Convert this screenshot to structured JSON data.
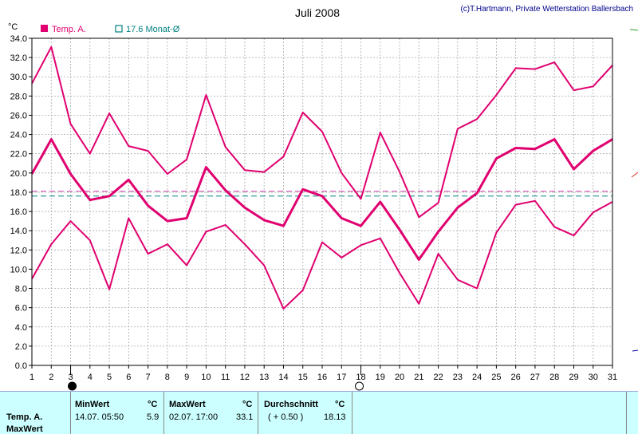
{
  "chart_data": {
    "type": "line",
    "title": "Juli 2008",
    "credit": "(c)T.Hartmann, Private Wetterstation Ballersbach",
    "ylabel": "°C",
    "ylim": [
      0,
      34
    ],
    "yticks": [
      "0.0",
      "2.0",
      "4.0",
      "6.0",
      "8.0",
      "10.0",
      "12.0",
      "14.0",
      "16.0",
      "18.0",
      "20.0",
      "22.0",
      "24.0",
      "26.0",
      "28.0",
      "30.0",
      "32.0",
      "34.0"
    ],
    "x": [
      1,
      2,
      3,
      4,
      5,
      6,
      7,
      8,
      9,
      10,
      11,
      12,
      13,
      14,
      15,
      16,
      17,
      18,
      19,
      20,
      21,
      22,
      23,
      24,
      25,
      26,
      27,
      28,
      29,
      30,
      31
    ],
    "grid": true,
    "legend": [
      {
        "label": "Temp. A.",
        "color": "#e0006f",
        "swatch": "filled"
      },
      {
        "label": "17.6 Monat-Ø",
        "color": "#008080",
        "swatch": "hollow"
      }
    ],
    "series": [
      {
        "name": "Max",
        "color": "#e0006f",
        "values": [
          29.3,
          33.1,
          25.1,
          22.0,
          26.2,
          22.8,
          22.3,
          19.9,
          21.4,
          28.1,
          22.7,
          20.3,
          20.1,
          21.7,
          26.3,
          24.3,
          20.0,
          17.3,
          24.2,
          20.1,
          15.4,
          16.9,
          24.6,
          25.6,
          28.1,
          30.9,
          30.8,
          31.5,
          28.6,
          29.0,
          31.2
        ]
      },
      {
        "name": "Durchschnitt",
        "color": "#e0006f",
        "bold": true,
        "values": [
          19.9,
          23.5,
          19.9,
          17.2,
          17.6,
          19.3,
          16.6,
          15.0,
          15.3,
          20.6,
          18.2,
          16.4,
          15.1,
          14.5,
          18.3,
          17.6,
          15.3,
          14.5,
          17.0,
          14.1,
          11.0,
          13.9,
          16.4,
          17.9,
          21.5,
          22.6,
          22.5,
          23.5,
          20.4,
          22.3,
          23.5
        ]
      },
      {
        "name": "Min",
        "color": "#e0006f",
        "values": [
          9.0,
          12.6,
          15.0,
          13.0,
          7.9,
          15.3,
          11.6,
          12.6,
          10.4,
          13.9,
          14.6,
          12.6,
          10.4,
          5.9,
          7.8,
          12.8,
          11.2,
          12.5,
          13.2,
          9.6,
          6.4,
          11.6,
          8.9,
          8.0,
          13.8,
          16.7,
          17.1,
          14.4,
          13.5,
          15.9,
          17.0
        ]
      }
    ],
    "reference_lines": [
      {
        "value": 18.1,
        "color": "#cc44aa"
      },
      {
        "value": 17.6,
        "color": "#008080"
      }
    ],
    "moon_markers": [
      {
        "day": 3,
        "phase": "new"
      },
      {
        "day": 18,
        "phase": "full"
      }
    ]
  },
  "footer": {
    "row_labels": [
      "Temp. A.",
      "MaxWert"
    ],
    "min": {
      "header": "MinWert",
      "unit": "°C",
      "datetime": "14.07.  05:50",
      "value": "5.9"
    },
    "max": {
      "header": "MaxWert",
      "unit": "°C",
      "datetime": "02.07.  17:00",
      "value": "33.1"
    },
    "avg": {
      "header": "Durchschnitt",
      "unit": "°C",
      "delta": "( + 0.50 )",
      "value": "18.13"
    }
  }
}
